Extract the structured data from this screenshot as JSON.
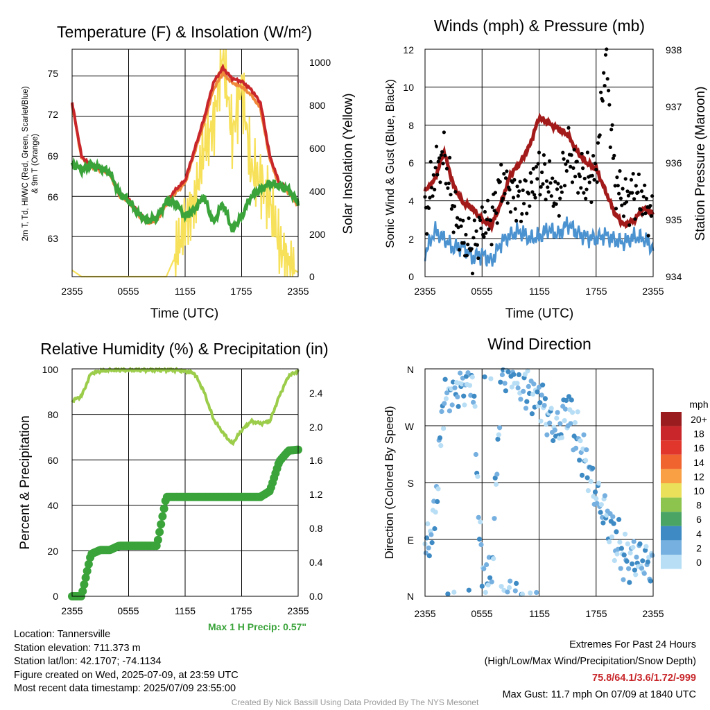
{
  "colors": {
    "temp_red": "#c8262a",
    "temp_orange": "#f0883a",
    "temp_green": "#3aa33a",
    "insolation": "#f7e15a",
    "wind_blue": "#4b92d0",
    "gust_black": "#000000",
    "pressure_maroon": "#a31a1a",
    "rh": "#9bcc4a",
    "precip": "#3aa33a",
    "scale_colors": [
      "#9b1c1f",
      "#c8262a",
      "#e0362b",
      "#f0642f",
      "#f9a044",
      "#ebe05a",
      "#8dc44e",
      "#4aa565",
      "#3d8ac4",
      "#76b0e0",
      "#b8def5"
    ]
  },
  "x_ticks": [
    "2355",
    "0555",
    "1155",
    "1755",
    "2355"
  ],
  "panels": {
    "temp": {
      "title": "Temperature (F) & Insolation (W/m²)",
      "ylabel_line1": "2m T, Td, HI/WC (Red, Green, Scarlet/Blue)",
      "ylabel_line2": "& 9m T (Orange)",
      "y2label": "Solar Insolation (Yellow)",
      "xlabel": "Time (UTC)",
      "yticks": [
        "75",
        "72",
        "69",
        "66",
        "63"
      ],
      "y2ticks": [
        "1000",
        "800",
        "600",
        "400",
        "200",
        "0"
      ]
    },
    "wind": {
      "title": "Winds (mph) & Pressure (mb)",
      "ylabel": "Sonic Wind & Gust (Blue, Black)",
      "y2label": "Station Pressure (Maroon)",
      "xlabel": "Time (UTC)",
      "yticks": [
        "12",
        "10",
        "8",
        "6",
        "4",
        "2",
        "0"
      ],
      "y2ticks": [
        "938",
        "937",
        "936",
        "935",
        "934"
      ]
    },
    "rh": {
      "title": "Relative Humidity (%) & Precipitation (in)",
      "ylabel": "Percent & Precipitation",
      "yticks": [
        "100",
        "80",
        "60",
        "40",
        "20",
        "0"
      ],
      "y2ticks": [
        "2.4",
        "2.0",
        "1.6",
        "1.2",
        "0.8",
        "0.4",
        "0.0"
      ],
      "max_precip": "Max 1 H Precip: 0.57\""
    },
    "dir": {
      "title": "Wind Direction",
      "ylabel": "Direction (Colored By Speed)",
      "yticks": [
        "N",
        "W",
        "S",
        "E",
        "N"
      ],
      "scale_title": "mph",
      "scale_labels": [
        "20+",
        "18",
        "16",
        "14",
        "12",
        "10",
        "8",
        "6",
        "4",
        "2",
        "0"
      ]
    }
  },
  "chart_data": [
    {
      "type": "line",
      "title": "Temperature (F) & Insolation (W/m²)",
      "xlabel": "Time (UTC)",
      "ylabel": "2m T, Td, HI/WC (Red, Green, Scarlet/Blue) & 9m T (Orange)",
      "y2label": "Solar Insolation (Yellow)",
      "x": [
        0,
        1,
        2,
        3,
        4,
        5,
        6,
        7,
        8,
        9,
        10,
        11,
        12,
        13,
        14,
        15,
        16,
        17,
        18,
        19,
        20,
        21,
        22,
        23,
        24
      ],
      "ylim": [
        60,
        77
      ],
      "y2lim": [
        0,
        1060
      ],
      "series": [
        {
          "name": "2m T",
          "axis": "left",
          "values": [
            73.0,
            69.0,
            68.3,
            68.1,
            67.8,
            66.2,
            65.8,
            64.8,
            64.2,
            64.4,
            65.6,
            66.5,
            67.2,
            69.5,
            71.8,
            74.5,
            75.6,
            74.8,
            74.6,
            74.0,
            73.0,
            69.0,
            67.0,
            66.5,
            65.5
          ]
        },
        {
          "name": "9m T",
          "axis": "left",
          "values": [
            72.9,
            68.9,
            68.2,
            68.0,
            67.7,
            66.1,
            65.6,
            64.6,
            64.0,
            64.2,
            65.4,
            66.3,
            67.0,
            69.3,
            71.5,
            74.0,
            75.2,
            74.5,
            74.2,
            73.6,
            72.6,
            68.8,
            66.8,
            66.3,
            65.3
          ]
        },
        {
          "name": "Td",
          "axis": "left",
          "values": [
            68.5,
            68.0,
            68.3,
            68.1,
            67.8,
            66.2,
            65.7,
            64.7,
            64.2,
            64.4,
            65.6,
            65.5,
            64.5,
            65.0,
            66.0,
            64.0,
            65.5,
            63.5,
            64.5,
            66.0,
            66.5,
            67.0,
            66.8,
            66.5,
            65.5
          ]
        },
        {
          "name": "Solar Insolation",
          "axis": "right",
          "values": [
            30,
            0,
            0,
            0,
            0,
            0,
            0,
            0,
            0,
            0,
            0,
            100,
            250,
            350,
            600,
            700,
            1050,
            650,
            900,
            500,
            450,
            350,
            150,
            50,
            20
          ]
        }
      ]
    },
    {
      "type": "line",
      "title": "Winds (mph) & Pressure (mb)",
      "xlabel": "Time (UTC)",
      "ylabel": "Sonic Wind & Gust (Blue, Black)",
      "y2label": "Station Pressure (Maroon)",
      "x": [
        0,
        1,
        2,
        3,
        4,
        5,
        6,
        7,
        8,
        9,
        10,
        11,
        12,
        13,
        14,
        15,
        16,
        17,
        18,
        19,
        20,
        21,
        22,
        23,
        24
      ],
      "ylim": [
        0,
        12
      ],
      "y2lim": [
        934,
        938
      ],
      "series": [
        {
          "name": "Sonic Wind",
          "axis": "left",
          "values": [
            1.2,
            2.4,
            2.0,
            1.5,
            1.6,
            1.0,
            1.2,
            0.8,
            1.8,
            2.2,
            2.4,
            2.0,
            2.1,
            2.5,
            2.2,
            2.8,
            2.3,
            2.1,
            2.0,
            2.2,
            1.9,
            1.8,
            2.1,
            2.0,
            1.5
          ]
        },
        {
          "name": "Gust",
          "axis": "left",
          "values": [
            3.0,
            5.5,
            6.5,
            3.5,
            2.0,
            1.5,
            2.8,
            3.0,
            5.0,
            4.5,
            4.0,
            4.5,
            5.5,
            5.0,
            4.0,
            6.5,
            5.5,
            5.0,
            5.5,
            11.7,
            5.0,
            4.0,
            4.5,
            4.0,
            3.0
          ]
        },
        {
          "name": "Station Pressure",
          "axis": "right",
          "values": [
            935.5,
            935.7,
            936.2,
            935.6,
            935.3,
            935.2,
            935.0,
            934.9,
            935.3,
            935.8,
            936.0,
            936.3,
            936.8,
            936.7,
            936.6,
            936.5,
            936.2,
            936.0,
            935.9,
            935.5,
            935.1,
            934.9,
            935.0,
            935.2,
            935.1
          ]
        }
      ]
    },
    {
      "type": "line",
      "title": "Relative Humidity (%) & Precipitation (in)",
      "ylabel": "Percent & Precipitation",
      "x": [
        0,
        1,
        2,
        3,
        4,
        5,
        6,
        7,
        8,
        9,
        10,
        11,
        12,
        13,
        14,
        15,
        16,
        17,
        18,
        19,
        20,
        21,
        22,
        23,
        24
      ],
      "ylim": [
        0,
        100
      ],
      "y2lim": [
        0,
        2.7
      ],
      "series": [
        {
          "name": "Relative Humidity",
          "axis": "left",
          "values": [
            86,
            88,
            98,
            99,
            99.5,
            99.5,
            99.5,
            99.5,
            99.5,
            99.5,
            99.5,
            99.5,
            99,
            98,
            90,
            78,
            72,
            67,
            73,
            77,
            76,
            77,
            88,
            97,
            99
          ]
        },
        {
          "name": "Precipitation",
          "axis": "right",
          "values": [
            0,
            0,
            0.5,
            0.55,
            0.55,
            0.6,
            0.6,
            0.6,
            0.6,
            0.6,
            1.18,
            1.18,
            1.18,
            1.18,
            1.18,
            1.18,
            1.18,
            1.18,
            1.18,
            1.18,
            1.18,
            1.25,
            1.6,
            1.73,
            1.74
          ]
        }
      ]
    },
    {
      "type": "scatter",
      "title": "Wind Direction",
      "ylabel": "Direction (Colored By Speed)",
      "x": [
        0,
        1,
        2,
        3,
        4,
        5,
        6,
        7,
        8,
        9,
        10,
        11,
        12,
        13,
        14,
        15,
        16,
        17,
        18,
        19,
        20,
        21,
        22,
        23,
        24
      ],
      "ylim": [
        0,
        360
      ],
      "series": [
        {
          "name": "Direction",
          "values": [
            70,
            120,
            320,
            330,
            330,
            350,
            30,
            20,
            350,
            360,
            340,
            330,
            320,
            280,
            260,
            300,
            250,
            210,
            160,
            130,
            90,
            60,
            60,
            55,
            50
          ]
        }
      ]
    }
  ],
  "footer": {
    "location": "Location: Tannersville",
    "elevation": "Station elevation: 711.373 m",
    "latlon": "Station lat/lon: 42.1707; -74.1134",
    "created": "Figure created on Wed, 2025-07-09, at 23:59 UTC",
    "recent": "Most recent data timestamp: 2025/07/09 23:55:00",
    "extremes_title": "Extremes For Past 24 Hours",
    "extremes_sub": "(High/Low/Max Wind/Precipitation/Snow Depth)",
    "extremes_values": "75.8/64.1/3.6/1.72/-999",
    "max_gust": "Max Gust: 11.7 mph On 07/09 at 1840 UTC",
    "credit": "Created By Nick Bassill Using Data Provided By The NYS Mesonet"
  }
}
